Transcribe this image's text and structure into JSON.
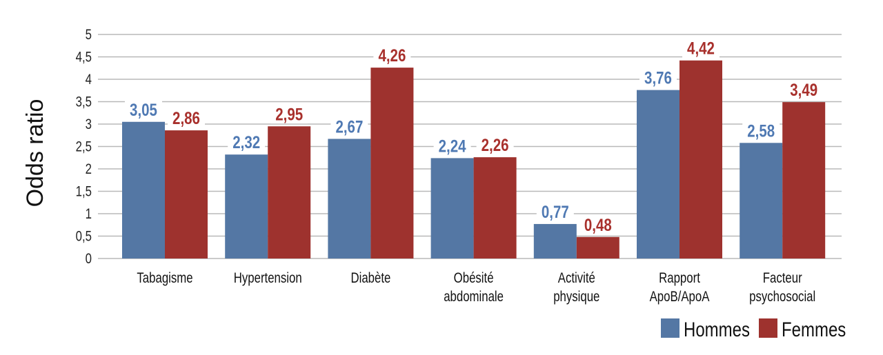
{
  "chart_data": {
    "type": "bar",
    "title": "",
    "xlabel": "",
    "ylabel": "Odds ratio",
    "ylim": [
      0,
      5
    ],
    "yticks": [
      "0",
      "0,5",
      "1",
      "1,5",
      "2",
      "2,5",
      "3",
      "3,5",
      "4",
      "4,5",
      "5"
    ],
    "grid": true,
    "legend_placement": "bottom-right",
    "categories": [
      [
        "Tabagisme"
      ],
      [
        "Hypertension"
      ],
      [
        "Diabète"
      ],
      [
        "Obésité",
        "abdominale"
      ],
      [
        "Activité",
        "physique"
      ],
      [
        "Rapport",
        "ApoB/ApoA"
      ],
      [
        "Facteur",
        "psychosocial"
      ]
    ],
    "series": [
      {
        "name": "Hommes",
        "color": "#5477A4",
        "label_color": "#4F79B3",
        "values": [
          3.05,
          2.32,
          2.67,
          2.24,
          0.77,
          3.76,
          2.58
        ],
        "labels": [
          "3,05",
          "2,32",
          "2,67",
          "2,24",
          "0,77",
          "3,76",
          "2,58"
        ]
      },
      {
        "name": "Femmes",
        "color": "#9E322E",
        "label_color": "#A8302C",
        "values": [
          2.86,
          2.95,
          4.26,
          2.26,
          0.48,
          4.42,
          3.49
        ],
        "labels": [
          "2,86",
          "2,95",
          "4,26",
          "2,26",
          "0,48",
          "4,42",
          "3,49"
        ]
      }
    ]
  }
}
